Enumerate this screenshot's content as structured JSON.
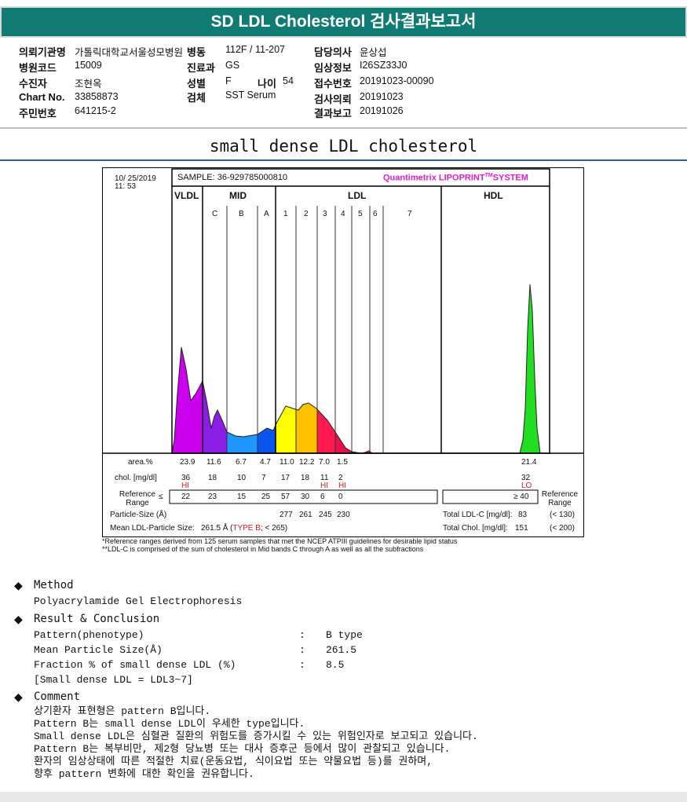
{
  "header": {
    "title": "SD LDL Cholesterol 검사결과보고서"
  },
  "info": {
    "institution_label": "의뢰기관명",
    "institution": "가톨릭대학교서울성모병원",
    "ward_label": "병동",
    "ward": "112F / 11-207",
    "doctor_label": "담당의사",
    "doctor": "윤상섭",
    "hospital_code_label": "병원코드",
    "hospital_code": "15009",
    "dept_label": "진료과",
    "dept": "GS",
    "clinical_label": "임상정보",
    "clinical": "I26SZ33J0",
    "patient_label": "수진자",
    "patient": "조현옥",
    "sex_label": "성별",
    "sex": "F",
    "age_label": "나이",
    "age": "54",
    "receipt_label": "접수번호",
    "receipt": "20191023-00090",
    "chart_no_label": "Chart No.",
    "chart_no": "33858873",
    "specimen_label": "검체",
    "specimen": "SST Serum",
    "request_label": "검사의뢰",
    "request": "20191023",
    "id_label": "주민번호",
    "id": "641215-2",
    "report_label": "결과보고",
    "report": "20191026"
  },
  "section_title": "small dense LDL cholesterol",
  "chart_data": {
    "type": "area",
    "date": "10/ 25/2019",
    "time": "11: 53",
    "sample": "SAMPLE:  36-929785000810",
    "brand": "Quantimetrix LIPOPRINT",
    "brand_tm": "TM",
    "brand_suffix": "SYSTEM",
    "groups": [
      "VLDL",
      "MID",
      "LDL",
      "HDL"
    ],
    "bands": [
      "C",
      "B",
      "A",
      "1",
      "2",
      "3",
      "4",
      "5",
      "6",
      "7"
    ],
    "colors": {
      "VLDL": "#cc00ee",
      "C": "#8a1ee6",
      "B": "#1e96ff",
      "A": "#0a55f0",
      "1": "#ffff00",
      "2": "#ffc000",
      "3": "#ff1a50",
      "4": "#e8104a",
      "HDL": "#22dd22"
    },
    "area_label": "area.%",
    "area": [
      "23.9",
      "11.6",
      "6.7",
      "4.7",
      "11.0",
      "12.2",
      "7.0",
      "1.5"
    ],
    "hdl_area": "21.4",
    "chol_label": "chol. [mg/dl]",
    "chol": [
      "36",
      "18",
      "10",
      "7",
      "17",
      "18",
      "11",
      "2"
    ],
    "chol_flags": [
      "HI",
      "",
      "",
      "",
      "",
      "",
      "HI",
      "HI"
    ],
    "hdl_chol": "32",
    "hdl_flag": "LO",
    "ref_label": "Reference Range",
    "ref_prefix": "≤",
    "ref": [
      "22",
      "23",
      "15",
      "25",
      "57",
      "30",
      "6",
      "0"
    ],
    "hdl_ref": "≥ 40",
    "ref_label_right": "Reference Range",
    "particle_label": "Particle-Size (Å)",
    "particle": [
      "277",
      "261",
      "245",
      "230"
    ],
    "total_ldl_label": "Total LDL-C [mg/dl]:",
    "total_ldl": "83",
    "total_ldl_ref": "(< 130)",
    "mean_label": "Mean LDL-Particle Size:",
    "mean": "261.5 Å",
    "mean_type_open": "(",
    "mean_type": "TYPE B",
    "mean_type_close": "; < 265)",
    "total_chol_label": "Total Chol. [mg/dl]:",
    "total_chol": "151",
    "total_chol_ref": "(< 200)",
    "footnote1": "*Reference ranges derived from 125 serum samples that met the NCEP ATPIII guidelines for desirable lipid status",
    "footnote2": "**LDL-C is comprised of the sum of cholesterol in Mid bands C through A as well as all the subfractions"
  },
  "method": {
    "title": "Method",
    "text": "Polyacrylamide Gel Electrophoresis"
  },
  "result": {
    "title": "Result & Conclusion",
    "rows": [
      {
        "label": "Pattern(phenotype)",
        "value": "B type"
      },
      {
        "label": "Mean Particle Size(Å)",
        "value": "261.5"
      },
      {
        "label": "Fraction % of small dense LDL (%)",
        "value": "8.5"
      }
    ],
    "sep": ":",
    "note": "[Small dense LDL = LDL3~7]"
  },
  "comment": {
    "title": "Comment",
    "lines": [
      "상기환자 표현형은 pattern B입니다.",
      "Pattern B는 small dense LDL이 우세한 type입니다.",
      "Small dense LDL은 심혈관 질환의 위험도를 증가시킬 수 있는 위험인자로 보고되고 있습니다.",
      "Pattern B는 복부비만, 제2형 당뇨병 또는 대사 증후군 등에서 많이 관찰되고 있습니다.",
      "환자의 임상상태에 따른 적절한 치료(운동요법, 식이요법 또는 약물요법 등)를 권하며,",
      "향후 pattern 변화에 대한 확인을 권유합니다."
    ]
  }
}
